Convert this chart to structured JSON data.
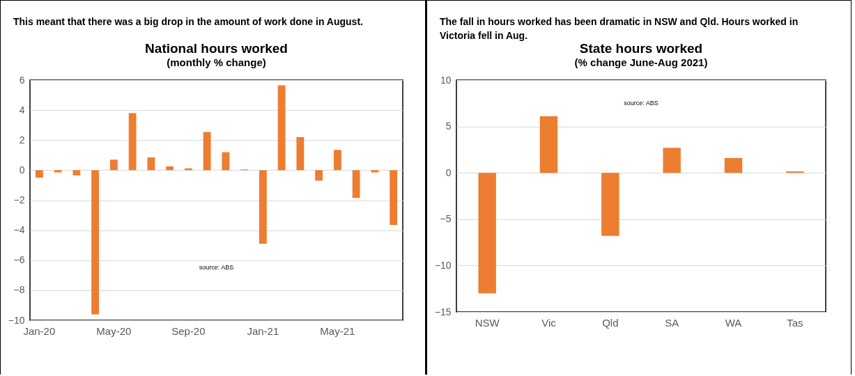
{
  "chart_data": [
    {
      "type": "bar",
      "title": "National hours worked",
      "subtitle": "(monthly % change)",
      "categories": [
        "Jan-20",
        null,
        null,
        null,
        "May-20",
        null,
        null,
        null,
        "Sep-20",
        null,
        null,
        null,
        "Jan-21",
        null,
        null,
        null,
        "May-21",
        null,
        null,
        null
      ],
      "values": [
        -0.5,
        -0.15,
        -0.35,
        -9.6,
        0.7,
        3.8,
        0.85,
        0.25,
        0.12,
        2.55,
        1.2,
        0.05,
        -4.9,
        5.65,
        2.2,
        -0.7,
        1.35,
        -1.85,
        -0.15,
        -3.65
      ],
      "color": "#ed7d31",
      "ylim": [
        -10,
        6
      ],
      "yticks": [
        -10,
        -8,
        -6,
        -4,
        -2,
        0,
        2,
        4,
        6
      ],
      "grid": "y",
      "annotations": [
        "This meant that there was a big drop in the amount of work done in August.",
        "source:  ABS"
      ]
    },
    {
      "type": "bar",
      "title": "State hours worked",
      "subtitle": "(% change June-Aug 2021)",
      "categories": [
        "NSW",
        "Vic",
        "Qld",
        "SA",
        "WA",
        "Tas"
      ],
      "values": [
        -13,
        6.1,
        -6.8,
        2.7,
        1.6,
        0.15
      ],
      "color": "#ed7d31",
      "ylim": [
        -15,
        10
      ],
      "yticks": [
        -15,
        -10,
        -5,
        0,
        5,
        10
      ],
      "grid": "y",
      "annotations": [
        "The fall in hours worked has been dramatic in NSW and Qld. Hours worked in Victoria fell in Aug.",
        "source:  ABS"
      ]
    }
  ]
}
